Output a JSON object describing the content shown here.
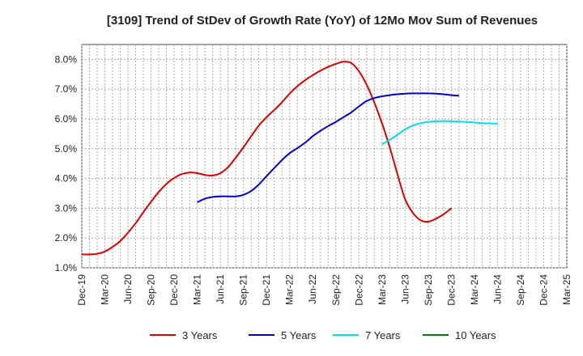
{
  "chart_data": {
    "type": "line",
    "title": "[3109]  Trend of StDev of Growth Rate (YoY) of 12Mo Mov Sum of Revenues",
    "xlabel": "",
    "ylabel": "",
    "ylim": [
      1.0,
      8.5
    ],
    "yticks": [
      "1.0%",
      "2.0%",
      "3.0%",
      "4.0%",
      "5.0%",
      "6.0%",
      "7.0%",
      "8.0%"
    ],
    "ytick_values": [
      1.0,
      2.0,
      3.0,
      4.0,
      5.0,
      6.0,
      7.0,
      8.0
    ],
    "xticks": [
      "Dec-19",
      "Mar-20",
      "Jun-20",
      "Sep-20",
      "Dec-20",
      "Mar-21",
      "Jun-21",
      "Sep-21",
      "Dec-21",
      "Mar-22",
      "Jun-22",
      "Sep-22",
      "Dec-22",
      "Mar-23",
      "Jun-23",
      "Sep-23",
      "Dec-23",
      "Mar-24",
      "Jun-24",
      "Sep-24",
      "Dec-24",
      "Mar-25"
    ],
    "grid": true,
    "legend_position": "bottom",
    "series": [
      {
        "name": "3 Years",
        "color": "#dd0000",
        "start_index": 0,
        "values": [
          1.45,
          1.45,
          1.47,
          1.55,
          1.7,
          1.9,
          2.18,
          2.5,
          2.87,
          3.22,
          3.55,
          3.82,
          4.02,
          4.15,
          4.2,
          4.18,
          4.12,
          4.1,
          4.18,
          4.38,
          4.7,
          5.05,
          5.42,
          5.78,
          6.06,
          6.3,
          6.56,
          6.85,
          7.1,
          7.3,
          7.47,
          7.62,
          7.75,
          7.85,
          7.92,
          7.88,
          7.6,
          7.15,
          6.55,
          5.85,
          5.05,
          4.15,
          3.3,
          2.85,
          2.6,
          2.55,
          2.65,
          2.8,
          3.0
        ]
      },
      {
        "name": "5 Years",
        "color": "#0000cc",
        "start_index": 15,
        "values": [
          3.2,
          3.32,
          3.38,
          3.4,
          3.4,
          3.4,
          3.45,
          3.58,
          3.8,
          4.08,
          4.35,
          4.62,
          4.85,
          5.02,
          5.2,
          5.42,
          5.6,
          5.76,
          5.9,
          6.06,
          6.22,
          6.42,
          6.6,
          6.7,
          6.76,
          6.8,
          6.83,
          6.85,
          6.86,
          6.86,
          6.86,
          6.85,
          6.83,
          6.8,
          6.78
        ]
      },
      {
        "name": "7 Years",
        "color": "#00e0f0",
        "start_index": 39,
        "values": [
          5.15,
          5.3,
          5.47,
          5.65,
          5.78,
          5.86,
          5.9,
          5.92,
          5.93,
          5.92,
          5.91,
          5.9,
          5.88,
          5.86,
          5.85,
          5.84
        ]
      },
      {
        "name": "10 Years",
        "color": "#008000",
        "start_index": 0,
        "values": []
      }
    ]
  }
}
